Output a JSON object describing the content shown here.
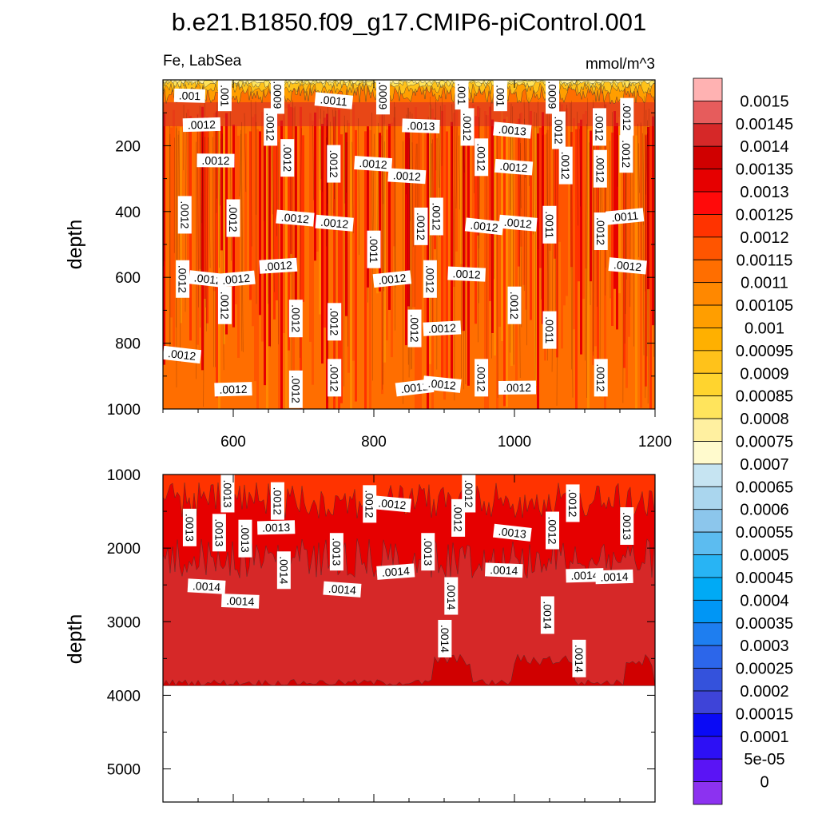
{
  "chart_data": {
    "type": "contour",
    "title": "b.e21.B1850.f09_g17.CMIP6-piControl.001",
    "variable": "Fe, LabSea",
    "units": "mmol/m^3",
    "panels": [
      {
        "ylabel": "depth",
        "xlim": [
          500,
          1200
        ],
        "ylim": [
          1000,
          0
        ],
        "xticks": [
          600,
          800,
          1000,
          1200
        ],
        "yticks": [
          200,
          400,
          600,
          800,
          1000
        ],
        "contour_labels": [
          {
            "text": ".001",
            "x": 538,
            "y": 48
          },
          {
            "text": ".001",
            "x": 588,
            "y": 48
          },
          {
            "text": ".0009",
            "x": 663,
            "y": 46
          },
          {
            "text": ".0011",
            "x": 743,
            "y": 63
          },
          {
            "text": ".0009",
            "x": 813,
            "y": 48
          },
          {
            "text": ".001",
            "x": 925,
            "y": 43
          },
          {
            "text": ".001",
            "x": 980,
            "y": 48
          },
          {
            "text": ".0009",
            "x": 1054,
            "y": 46
          },
          {
            "text": ".0012",
            "x": 1160,
            "y": 112
          },
          {
            "text": ".0012",
            "x": 555,
            "y": 136
          },
          {
            "text": ".0012",
            "x": 653,
            "y": 143
          },
          {
            "text": ".0013",
            "x": 867,
            "y": 140
          },
          {
            "text": ".0012",
            "x": 933,
            "y": 143
          },
          {
            "text": ".0013",
            "x": 997,
            "y": 153
          },
          {
            "text": ".0012",
            "x": 1063,
            "y": 153
          },
          {
            "text": ".0012",
            "x": 1121,
            "y": 143
          },
          {
            "text": ".0012",
            "x": 1159,
            "y": 225
          },
          {
            "text": ".0012",
            "x": 575,
            "y": 245
          },
          {
            "text": ".0012",
            "x": 677,
            "y": 237
          },
          {
            "text": ".0012",
            "x": 743,
            "y": 255
          },
          {
            "text": ".0012",
            "x": 799,
            "y": 255
          },
          {
            "text": ".0012",
            "x": 847,
            "y": 292
          },
          {
            "text": ".0012",
            "x": 953,
            "y": 235
          },
          {
            "text": ".0012",
            "x": 999,
            "y": 265
          },
          {
            "text": ".0012",
            "x": 1073,
            "y": 260
          },
          {
            "text": ".0012",
            "x": 1122,
            "y": 270
          },
          {
            "text": ".0012",
            "x": 531,
            "y": 410
          },
          {
            "text": ".0012",
            "x": 600,
            "y": 420
          },
          {
            "text": ".0012",
            "x": 688,
            "y": 420
          },
          {
            "text": ".0012",
            "x": 744,
            "y": 435
          },
          {
            "text": ".0012",
            "x": 889,
            "y": 415
          },
          {
            "text": ".0012",
            "x": 867,
            "y": 445
          },
          {
            "text": ".0012",
            "x": 957,
            "y": 445
          },
          {
            "text": ".0012",
            "x": 1005,
            "y": 435
          },
          {
            "text": ".0011",
            "x": 1050,
            "y": 440
          },
          {
            "text": ".0011",
            "x": 1157,
            "y": 415
          },
          {
            "text": ".0011",
            "x": 800,
            "y": 515
          },
          {
            "text": ".0012",
            "x": 1123,
            "y": 460
          },
          {
            "text": ".0012",
            "x": 1161,
            "y": 565
          },
          {
            "text": ".0012",
            "x": 528,
            "y": 605
          },
          {
            "text": ".0012",
            "x": 564,
            "y": 605
          },
          {
            "text": ".0012",
            "x": 604,
            "y": 605
          },
          {
            "text": ".0012",
            "x": 664,
            "y": 565
          },
          {
            "text": ".0012",
            "x": 826,
            "y": 605
          },
          {
            "text": ".0012",
            "x": 880,
            "y": 605
          },
          {
            "text": ".0012",
            "x": 932,
            "y": 590
          },
          {
            "text": ".0012",
            "x": 1000,
            "y": 685
          },
          {
            "text": ".0012",
            "x": 588,
            "y": 685
          },
          {
            "text": ".0012",
            "x": 689,
            "y": 725
          },
          {
            "text": ".0012",
            "x": 744,
            "y": 735
          },
          {
            "text": ".0012",
            "x": 858,
            "y": 755
          },
          {
            "text": ".0012",
            "x": 897,
            "y": 755
          },
          {
            "text": ".0011",
            "x": 1050,
            "y": 760
          },
          {
            "text": ".0012",
            "x": 527,
            "y": 835
          },
          {
            "text": ".0012",
            "x": 600,
            "y": 940
          },
          {
            "text": ".0012",
            "x": 689,
            "y": 940
          },
          {
            "text": ".0012",
            "x": 744,
            "y": 905
          },
          {
            "text": ".0012",
            "x": 858,
            "y": 935
          },
          {
            "text": ".0012",
            "x": 897,
            "y": 925
          },
          {
            "text": ".0012",
            "x": 953,
            "y": 905
          },
          {
            "text": ".0012",
            "x": 1004,
            "y": 935
          },
          {
            "text": ".0012",
            "x": 1123,
            "y": 905
          }
        ]
      },
      {
        "ylabel": "depth",
        "xlim": [
          500,
          1200
        ],
        "ylim": [
          5450,
          1000
        ],
        "yticks": [
          1000,
          2000,
          3000,
          4000,
          5000
        ],
        "data_bottom_depth": 3870,
        "contour_labels": [
          {
            "text": ".0013",
            "x": 592,
            "y": 1260
          },
          {
            "text": ".0012",
            "x": 663,
            "y": 1360
          },
          {
            "text": ".0012",
            "x": 794,
            "y": 1400
          },
          {
            "text": ".0012",
            "x": 826,
            "y": 1400
          },
          {
            "text": ".0012",
            "x": 935,
            "y": 1260
          },
          {
            "text": ".0012",
            "x": 1083,
            "y": 1390
          },
          {
            "text": ".0013",
            "x": 538,
            "y": 1720
          },
          {
            "text": ".0013",
            "x": 580,
            "y": 1790
          },
          {
            "text": ".0013",
            "x": 617,
            "y": 1870
          },
          {
            "text": ".0013",
            "x": 661,
            "y": 1720
          },
          {
            "text": ".0012",
            "x": 920,
            "y": 1590
          },
          {
            "text": ".0013",
            "x": 997,
            "y": 1790
          },
          {
            "text": ".0012",
            "x": 1054,
            "y": 1760
          },
          {
            "text": ".0013",
            "x": 1160,
            "y": 1700
          },
          {
            "text": ".0013",
            "x": 747,
            "y": 2050
          },
          {
            "text": ".0013",
            "x": 877,
            "y": 2050
          },
          {
            "text": ".0014",
            "x": 672,
            "y": 2300
          },
          {
            "text": ".0014",
            "x": 831,
            "y": 2320
          },
          {
            "text": ".0014",
            "x": 985,
            "y": 2300
          },
          {
            "text": ".0014",
            "x": 1100,
            "y": 2370
          },
          {
            "text": ".0014",
            "x": 1142,
            "y": 2390
          },
          {
            "text": ".0014",
            "x": 562,
            "y": 2520
          },
          {
            "text": ".0014",
            "x": 755,
            "y": 2560
          },
          {
            "text": ".0014",
            "x": 610,
            "y": 2720
          },
          {
            "text": ".0014",
            "x": 910,
            "y": 2650
          },
          {
            "text": ".0014",
            "x": 1047,
            "y": 2910
          },
          {
            "text": ".0014",
            "x": 901,
            "y": 3230
          },
          {
            "text": ".0014",
            "x": 1092,
            "y": 3500
          }
        ]
      }
    ],
    "xlabel": "",
    "colorbar": {
      "labels": [
        "0.0015",
        "0.00145",
        "0.0014",
        "0.00135",
        "0.0013",
        "0.00125",
        "0.0012",
        "0.00115",
        "0.0011",
        "0.00105",
        "0.001",
        "0.00095",
        "0.0009",
        "0.00085",
        "0.0008",
        "0.00075",
        "0.0007",
        "0.00065",
        "0.0006",
        "0.00055",
        "0.0005",
        "0.00045",
        "0.0004",
        "0.00035",
        "0.0003",
        "0.00025",
        "0.0002",
        "0.00015",
        "0.0001",
        "5e-05",
        "0"
      ],
      "colors": [
        "#FFB2B2",
        "#E65C5C",
        "#D62828",
        "#D00000",
        "#E60000",
        "#FF0A0A",
        "#FF3300",
        "#FF5500",
        "#FF6E00",
        "#FF8800",
        "#FF9E00",
        "#FFB000",
        "#FFC21A",
        "#FFD42E",
        "#FFE45C",
        "#FFF0A0",
        "#FFFACD",
        "#C6E4F2",
        "#AAD6EE",
        "#8CC6EC",
        "#5CBCF0",
        "#28B4F4",
        "#00AAF5",
        "#0096F5",
        "#1E7EF0",
        "#2C66EA",
        "#3452DC",
        "#3E44D8",
        "#0A0AF5",
        "#2D10F5",
        "#5A14F5",
        "#8C32F0"
      ]
    }
  }
}
